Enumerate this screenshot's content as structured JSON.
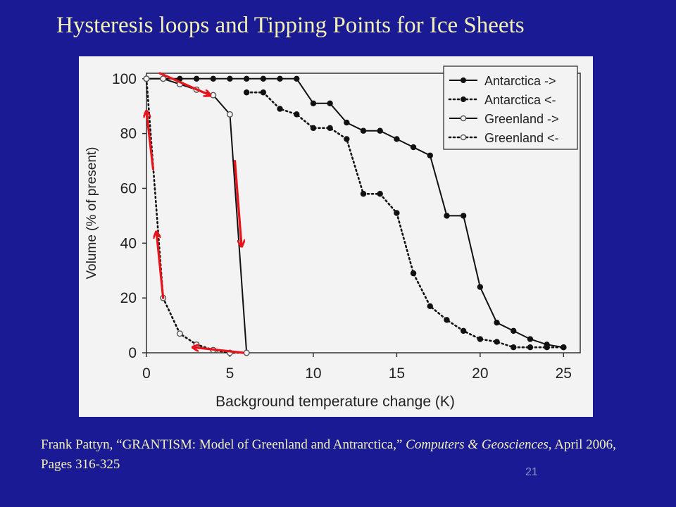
{
  "slide": {
    "title": "Hysteresis loops and Tipping Points for Ice Sheets",
    "caption_pre": "Frank Pattyn, “GRANTISM: Model of Greenland and Antrarctica,” ",
    "caption_journal": "Computers & Geosciences",
    "caption_post": ", April 2006, Pages 316-325",
    "page_number": "21"
  },
  "colors": {
    "background": "#1a1a94",
    "title_text": "#f1f1b4",
    "chart_background": "#f3f3f3",
    "series": "#111111",
    "annotation_arrows": "#e8141c"
  },
  "chart_data": {
    "type": "line",
    "xlabel": "Background temperature change (K)",
    "ylabel": "Volume (% of present)",
    "xlim": [
      0,
      26
    ],
    "ylim": [
      0,
      102
    ],
    "xticks": [
      0,
      5,
      10,
      15,
      20,
      25
    ],
    "yticks": [
      0,
      20,
      40,
      60,
      80,
      100
    ],
    "grid": false,
    "legend_position": "top-right",
    "series": [
      {
        "name": "Antarctica ->",
        "line": "solid",
        "marker": "filled",
        "x": [
          0,
          1,
          2,
          3,
          4,
          5,
          6,
          7,
          8,
          9,
          10,
          11,
          12,
          13,
          14,
          15,
          16,
          17,
          18,
          19,
          20,
          21,
          22,
          23,
          24,
          25
        ],
        "y": [
          100,
          100,
          100,
          100,
          100,
          100,
          100,
          100,
          100,
          100,
          91,
          91,
          84,
          81,
          81,
          78,
          75,
          72,
          50,
          50,
          24,
          11,
          8,
          5,
          3,
          2
        ]
      },
      {
        "name": "Antarctica <-",
        "line": "dotted",
        "marker": "filled",
        "x": [
          6,
          7,
          8,
          9,
          10,
          11,
          12,
          13,
          14,
          15,
          16,
          17,
          18,
          19,
          20,
          21,
          22,
          23,
          24,
          25
        ],
        "y": [
          95,
          95,
          89,
          87,
          82,
          82,
          78,
          58,
          58,
          51,
          29,
          17,
          12,
          8,
          5,
          4,
          2,
          2,
          2,
          2
        ]
      },
      {
        "name": "Greenland ->",
        "line": "solid",
        "marker": "open",
        "x": [
          0,
          1,
          2,
          3,
          4,
          5,
          6
        ],
        "y": [
          100,
          100,
          98,
          96,
          94,
          87,
          0
        ]
      },
      {
        "name": "Greenland <-",
        "line": "dotted",
        "marker": "open",
        "x": [
          0,
          1,
          2,
          3,
          4,
          5,
          6
        ],
        "y": [
          100,
          20,
          7,
          3,
          1,
          0,
          0
        ]
      }
    ],
    "annotations": [
      {
        "label": "red-arrow",
        "from": [
          0.8,
          102
        ],
        "to": [
          3.8,
          94
        ]
      },
      {
        "label": "red-arrow",
        "from": [
          5.3,
          70
        ],
        "to": [
          5.7,
          39
        ]
      },
      {
        "label": "red-arrow",
        "from": [
          5.8,
          0
        ],
        "to": [
          2.8,
          2
        ]
      },
      {
        "label": "red-arrow",
        "from": [
          1.0,
          20
        ],
        "to": [
          0.6,
          44
        ]
      },
      {
        "label": "red-arrow",
        "from": [
          0.4,
          67
        ],
        "to": [
          0.0,
          88
        ]
      }
    ]
  }
}
